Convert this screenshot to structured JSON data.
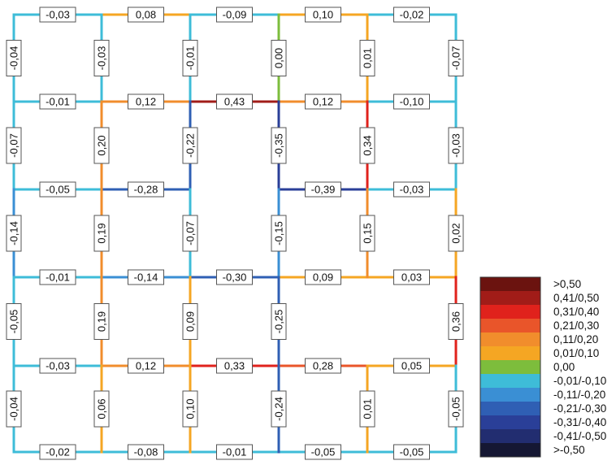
{
  "legend": {
    "entries": [
      {
        "label": ">0,50",
        "color": "#6b130f"
      },
      {
        "label": "0,41/0,50",
        "color": "#a11c18"
      },
      {
        "label": "0,31/0,40",
        "color": "#e0221c"
      },
      {
        "label": "0,21/0,30",
        "color": "#e9552a"
      },
      {
        "label": "0,11/0,20",
        "color": "#f18d2c"
      },
      {
        "label": "0,01/0,10",
        "color": "#f5a623"
      },
      {
        "label": "0,00",
        "color": "#7dbd3c"
      },
      {
        "label": "-0,01/-0,10",
        "color": "#3ebcd8"
      },
      {
        "label": "-0,11/-0,20",
        "color": "#3a8fd4"
      },
      {
        "label": "-0,21/-0,30",
        "color": "#2f5fb4"
      },
      {
        "label": "-0,31/-0,40",
        "color": "#2a3f98"
      },
      {
        "label": "-0,41/-0,50",
        "color": "#222d70"
      },
      {
        "label": ">-0,50",
        "color": "#151733"
      }
    ]
  },
  "grid": {
    "horizontal": [
      [
        "-0,03",
        "0,08",
        "-0,09",
        "0,10",
        "-0,02"
      ],
      [
        "-0,01",
        "0,12",
        "0,43",
        "0,12",
        "-0,10"
      ],
      [
        "-0,05",
        "-0,28",
        null,
        "-0,39",
        "-0,03"
      ],
      [
        "-0,01",
        "-0,14",
        "-0,30",
        "0,09",
        "0,03"
      ],
      [
        null,
        null,
        null,
        null,
        null
      ],
      [
        "-0,03",
        "0,12",
        "0,33",
        "0,28",
        "0,05"
      ],
      [
        "-0,02",
        "-0,08",
        "-0,01",
        "-0,05",
        "-0,05"
      ]
    ],
    "vertical": [
      [
        "-0,04",
        "-0,03",
        "-0,01",
        "0,00",
        "0,01",
        "-0,07"
      ],
      [
        "-0,07",
        "0,20",
        "-0,22",
        "-0,35",
        "0,34",
        "-0,03"
      ],
      [
        "-0,14",
        "0,19",
        "-0,07",
        "-0,15",
        "0,15",
        "0,02"
      ],
      [
        "-0,05",
        "0,19",
        "0,09",
        "-0,25",
        null,
        "0,36"
      ],
      [
        "-0,04",
        "0,06",
        "0,10",
        "-0,24",
        "0,01",
        "-0,05"
      ]
    ]
  }
}
